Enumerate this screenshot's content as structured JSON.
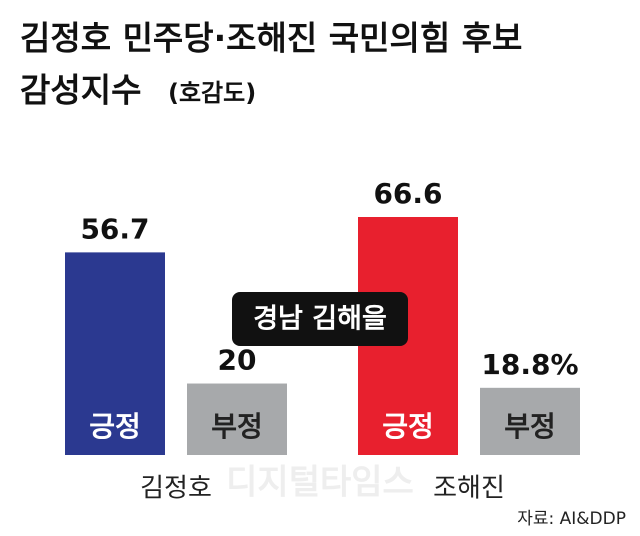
{
  "chart_data": {
    "type": "bar",
    "title": "김정호 민주당·조해진 국민의힘 후보",
    "subtitle": "감성지수",
    "subtitle_note": "(호감도)",
    "annotation": "경남 김해을",
    "watermark": "디지털타임스",
    "source": "자료: AI&DDP",
    "categories": [
      "김정호",
      "조해진"
    ],
    "series": [
      {
        "name": "긍정",
        "colors": [
          "#2b3990",
          "#e8202e"
        ],
        "values": [
          56.7,
          66.6
        ]
      },
      {
        "name": "부정",
        "color": "#a7a9ab",
        "values": [
          20,
          18.8
        ],
        "value_labels": [
          "20",
          "18.8%"
        ]
      }
    ]
  }
}
